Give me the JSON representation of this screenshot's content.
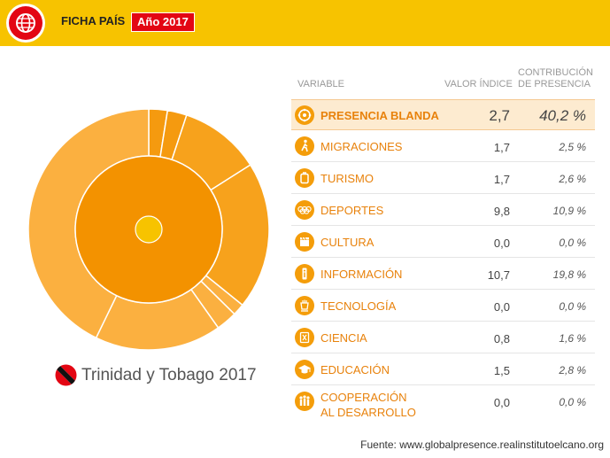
{
  "header": {
    "title": "FICHA PAÍS",
    "year_badge": "Año 2017"
  },
  "country": {
    "name": "Trinidad y Tobago 2017",
    "flag_icon": "trinidad-tobago-flag-icon"
  },
  "colors": {
    "topbar": "#f7c300",
    "badge": "#e30613",
    "accent_orange": "#f49d0a",
    "label_orange": "#e8820c",
    "inner_donut": "#f39200",
    "outer_light": "#fbb040",
    "center_dot": "#f7c300",
    "highlight_row": "#fdebd0"
  },
  "table": {
    "headers": {
      "variable": "VARIABLE",
      "valor": "VALOR ÍNDICE",
      "contribucion_1": "CONTRIBUCIÓN",
      "contribucion_2": "DE PRESENCIA"
    },
    "rows": [
      {
        "label": "PRESENCIA BLANDA",
        "valor": "2,7",
        "contribucion": "40,2 %",
        "icon": "soft-presence-icon"
      },
      {
        "label": "MIGRACIONES",
        "valor": "1,7",
        "contribucion": "2,5 %",
        "icon": "migration-icon"
      },
      {
        "label": "TURISMO",
        "valor": "1,7",
        "contribucion": "2,6 %",
        "icon": "tourism-icon"
      },
      {
        "label": "DEPORTES",
        "valor": "9,8",
        "contribucion": "10,9 %",
        "icon": "olympic-rings-icon"
      },
      {
        "label": "CULTURA",
        "valor": "0,0",
        "contribucion": "0,0 %",
        "icon": "clapperboard-icon"
      },
      {
        "label": "INFORMACIÓN",
        "valor": "10,7",
        "contribucion": "19,8 %",
        "icon": "info-icon"
      },
      {
        "label": "TECNOLOGÍA",
        "valor": "0,0",
        "contribucion": "0,0 %",
        "icon": "technology-icon"
      },
      {
        "label": "CIENCIA",
        "valor": "0,8",
        "contribucion": "1,6 %",
        "icon": "science-icon"
      },
      {
        "label": "EDUCACIÓN",
        "valor": "1,5",
        "contribucion": "2,8 %",
        "icon": "graduation-cap-icon"
      },
      {
        "label_1": "COOPERACIÓN",
        "label_2": "AL DESARROLLO",
        "valor": "0,0",
        "contribucion": "0,0 %",
        "icon": "cooperation-icon"
      }
    ]
  },
  "chart_data": {
    "type": "pie",
    "rings": [
      {
        "name": "inner",
        "segments": [
          {
            "value": 100
          }
        ]
      },
      {
        "name": "outer",
        "segments": [
          {
            "value": 2.5
          },
          {
            "value": 2.6
          },
          {
            "value": 10.9
          },
          {
            "value": 19.8
          },
          {
            "value": 1.6
          },
          {
            "value": 2.8
          },
          {
            "value": 17.0
          },
          {
            "value": 42.8
          }
        ]
      }
    ]
  },
  "footer": {
    "source": "Fuente: www.globalpresence.realinstitutoelcano.org"
  }
}
